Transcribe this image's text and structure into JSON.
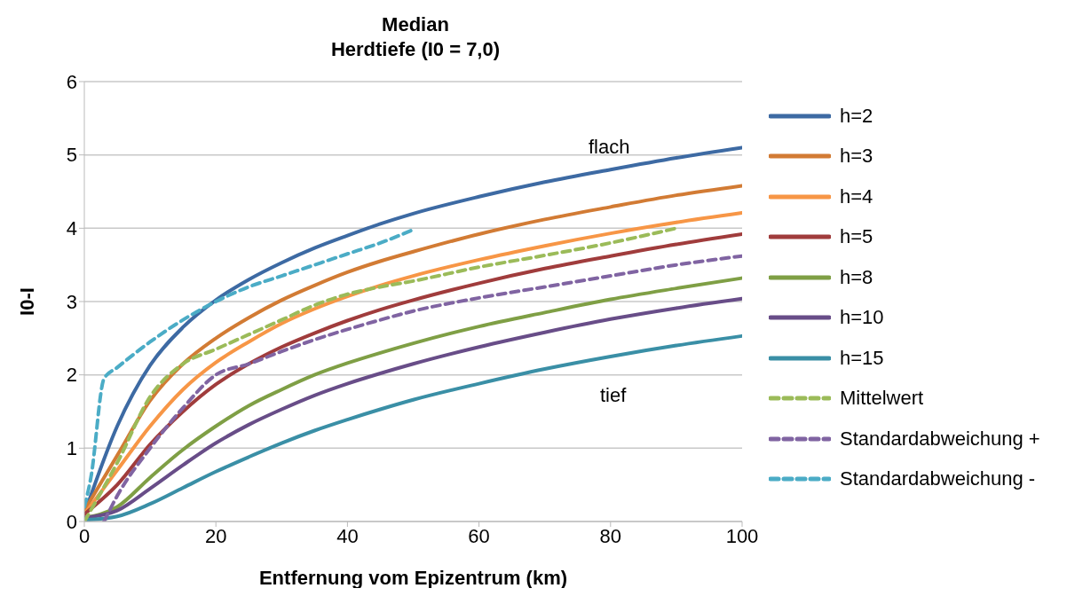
{
  "chart_data": {
    "type": "line",
    "title": "Median",
    "subtitle": "Herdtiefe (I0 = 7,0)",
    "xlabel": "Entfernung vom Epizentrum (km)",
    "ylabel": "I0-I",
    "x": [
      0,
      5,
      10,
      15,
      20,
      25,
      30,
      35,
      40,
      45,
      50,
      60,
      70,
      80,
      90,
      100
    ],
    "xlim": [
      0,
      100
    ],
    "xticks": [
      0,
      20,
      40,
      60,
      80,
      100
    ],
    "ylim": [
      0,
      6
    ],
    "yticks": [
      0,
      1,
      2,
      3,
      4,
      5,
      6
    ],
    "grid": "y",
    "legend": "right",
    "marker": "none",
    "series": [
      {
        "name": "h=2",
        "color": "#3d6aa3",
        "values": [
          0.1,
          1.3,
          2.13,
          2.65,
          3.02,
          3.3,
          3.53,
          3.73,
          3.9,
          4.06,
          4.2,
          4.43,
          4.63,
          4.8,
          4.96,
          5.1
        ]
      },
      {
        "name": "h=3",
        "color": "#d27b34",
        "values": [
          0.15,
          0.9,
          1.65,
          2.15,
          2.5,
          2.78,
          3.02,
          3.22,
          3.4,
          3.55,
          3.68,
          3.92,
          4.12,
          4.29,
          4.45,
          4.58
        ]
      },
      {
        "name": "h=4",
        "color": "#f79646",
        "values": [
          0.1,
          0.7,
          1.3,
          1.8,
          2.17,
          2.45,
          2.7,
          2.9,
          3.07,
          3.22,
          3.35,
          3.57,
          3.76,
          3.93,
          4.08,
          4.21
        ]
      },
      {
        "name": "h=5",
        "color": "#a03c3c",
        "values": [
          0.1,
          0.5,
          1.05,
          1.5,
          1.87,
          2.15,
          2.38,
          2.57,
          2.74,
          2.89,
          3.02,
          3.25,
          3.45,
          3.62,
          3.78,
          3.92
        ]
      },
      {
        "name": "h=8",
        "color": "#7f9f45",
        "values": [
          0.05,
          0.2,
          0.6,
          0.98,
          1.3,
          1.58,
          1.8,
          2.0,
          2.16,
          2.3,
          2.43,
          2.66,
          2.85,
          3.03,
          3.18,
          3.32
        ]
      },
      {
        "name": "h=10",
        "color": "#684d88",
        "values": [
          0.05,
          0.15,
          0.45,
          0.77,
          1.07,
          1.32,
          1.53,
          1.72,
          1.88,
          2.02,
          2.15,
          2.38,
          2.58,
          2.76,
          2.91,
          3.04
        ]
      },
      {
        "name": "h=15",
        "color": "#3a8fa6",
        "values": [
          0.02,
          0.07,
          0.24,
          0.46,
          0.68,
          0.88,
          1.07,
          1.24,
          1.39,
          1.53,
          1.66,
          1.88,
          2.08,
          2.25,
          2.4,
          2.53
        ]
      },
      {
        "name": "Mittelwert",
        "color": "#9bbb59",
        "line_style": "dashed",
        "x": [
          0,
          5,
          10,
          15,
          20,
          25,
          30,
          35,
          40,
          45,
          50,
          60,
          70,
          80,
          90
        ],
        "values": [
          0,
          0.8,
          1.7,
          2.15,
          2.35,
          2.55,
          2.75,
          2.95,
          3.1,
          3.2,
          3.28,
          3.47,
          3.63,
          3.8,
          4.0
        ]
      },
      {
        "name": "Standardabweichung +",
        "color": "#8064a2",
        "line_style": "dashed",
        "x": [
          3,
          5,
          10,
          15,
          20,
          25,
          30,
          35,
          40,
          45,
          50,
          60,
          70,
          80,
          90,
          100
        ],
        "values": [
          0,
          0.35,
          1.0,
          1.55,
          2.0,
          2.15,
          2.32,
          2.48,
          2.62,
          2.75,
          2.87,
          3.05,
          3.2,
          3.35,
          3.5,
          3.62
        ]
      },
      {
        "name": "Standardabweichung -",
        "color": "#4bacc6",
        "line_style": "dashed",
        "x": [
          0,
          1,
          3,
          5,
          10,
          15,
          20,
          25,
          30,
          35,
          40,
          45,
          50
        ],
        "values": [
          0.2,
          0.6,
          1.95,
          2.1,
          2.45,
          2.75,
          3.0,
          3.2,
          3.35,
          3.5,
          3.65,
          3.8,
          3.98
        ]
      }
    ],
    "annotations": [
      "flach",
      "tief"
    ]
  }
}
